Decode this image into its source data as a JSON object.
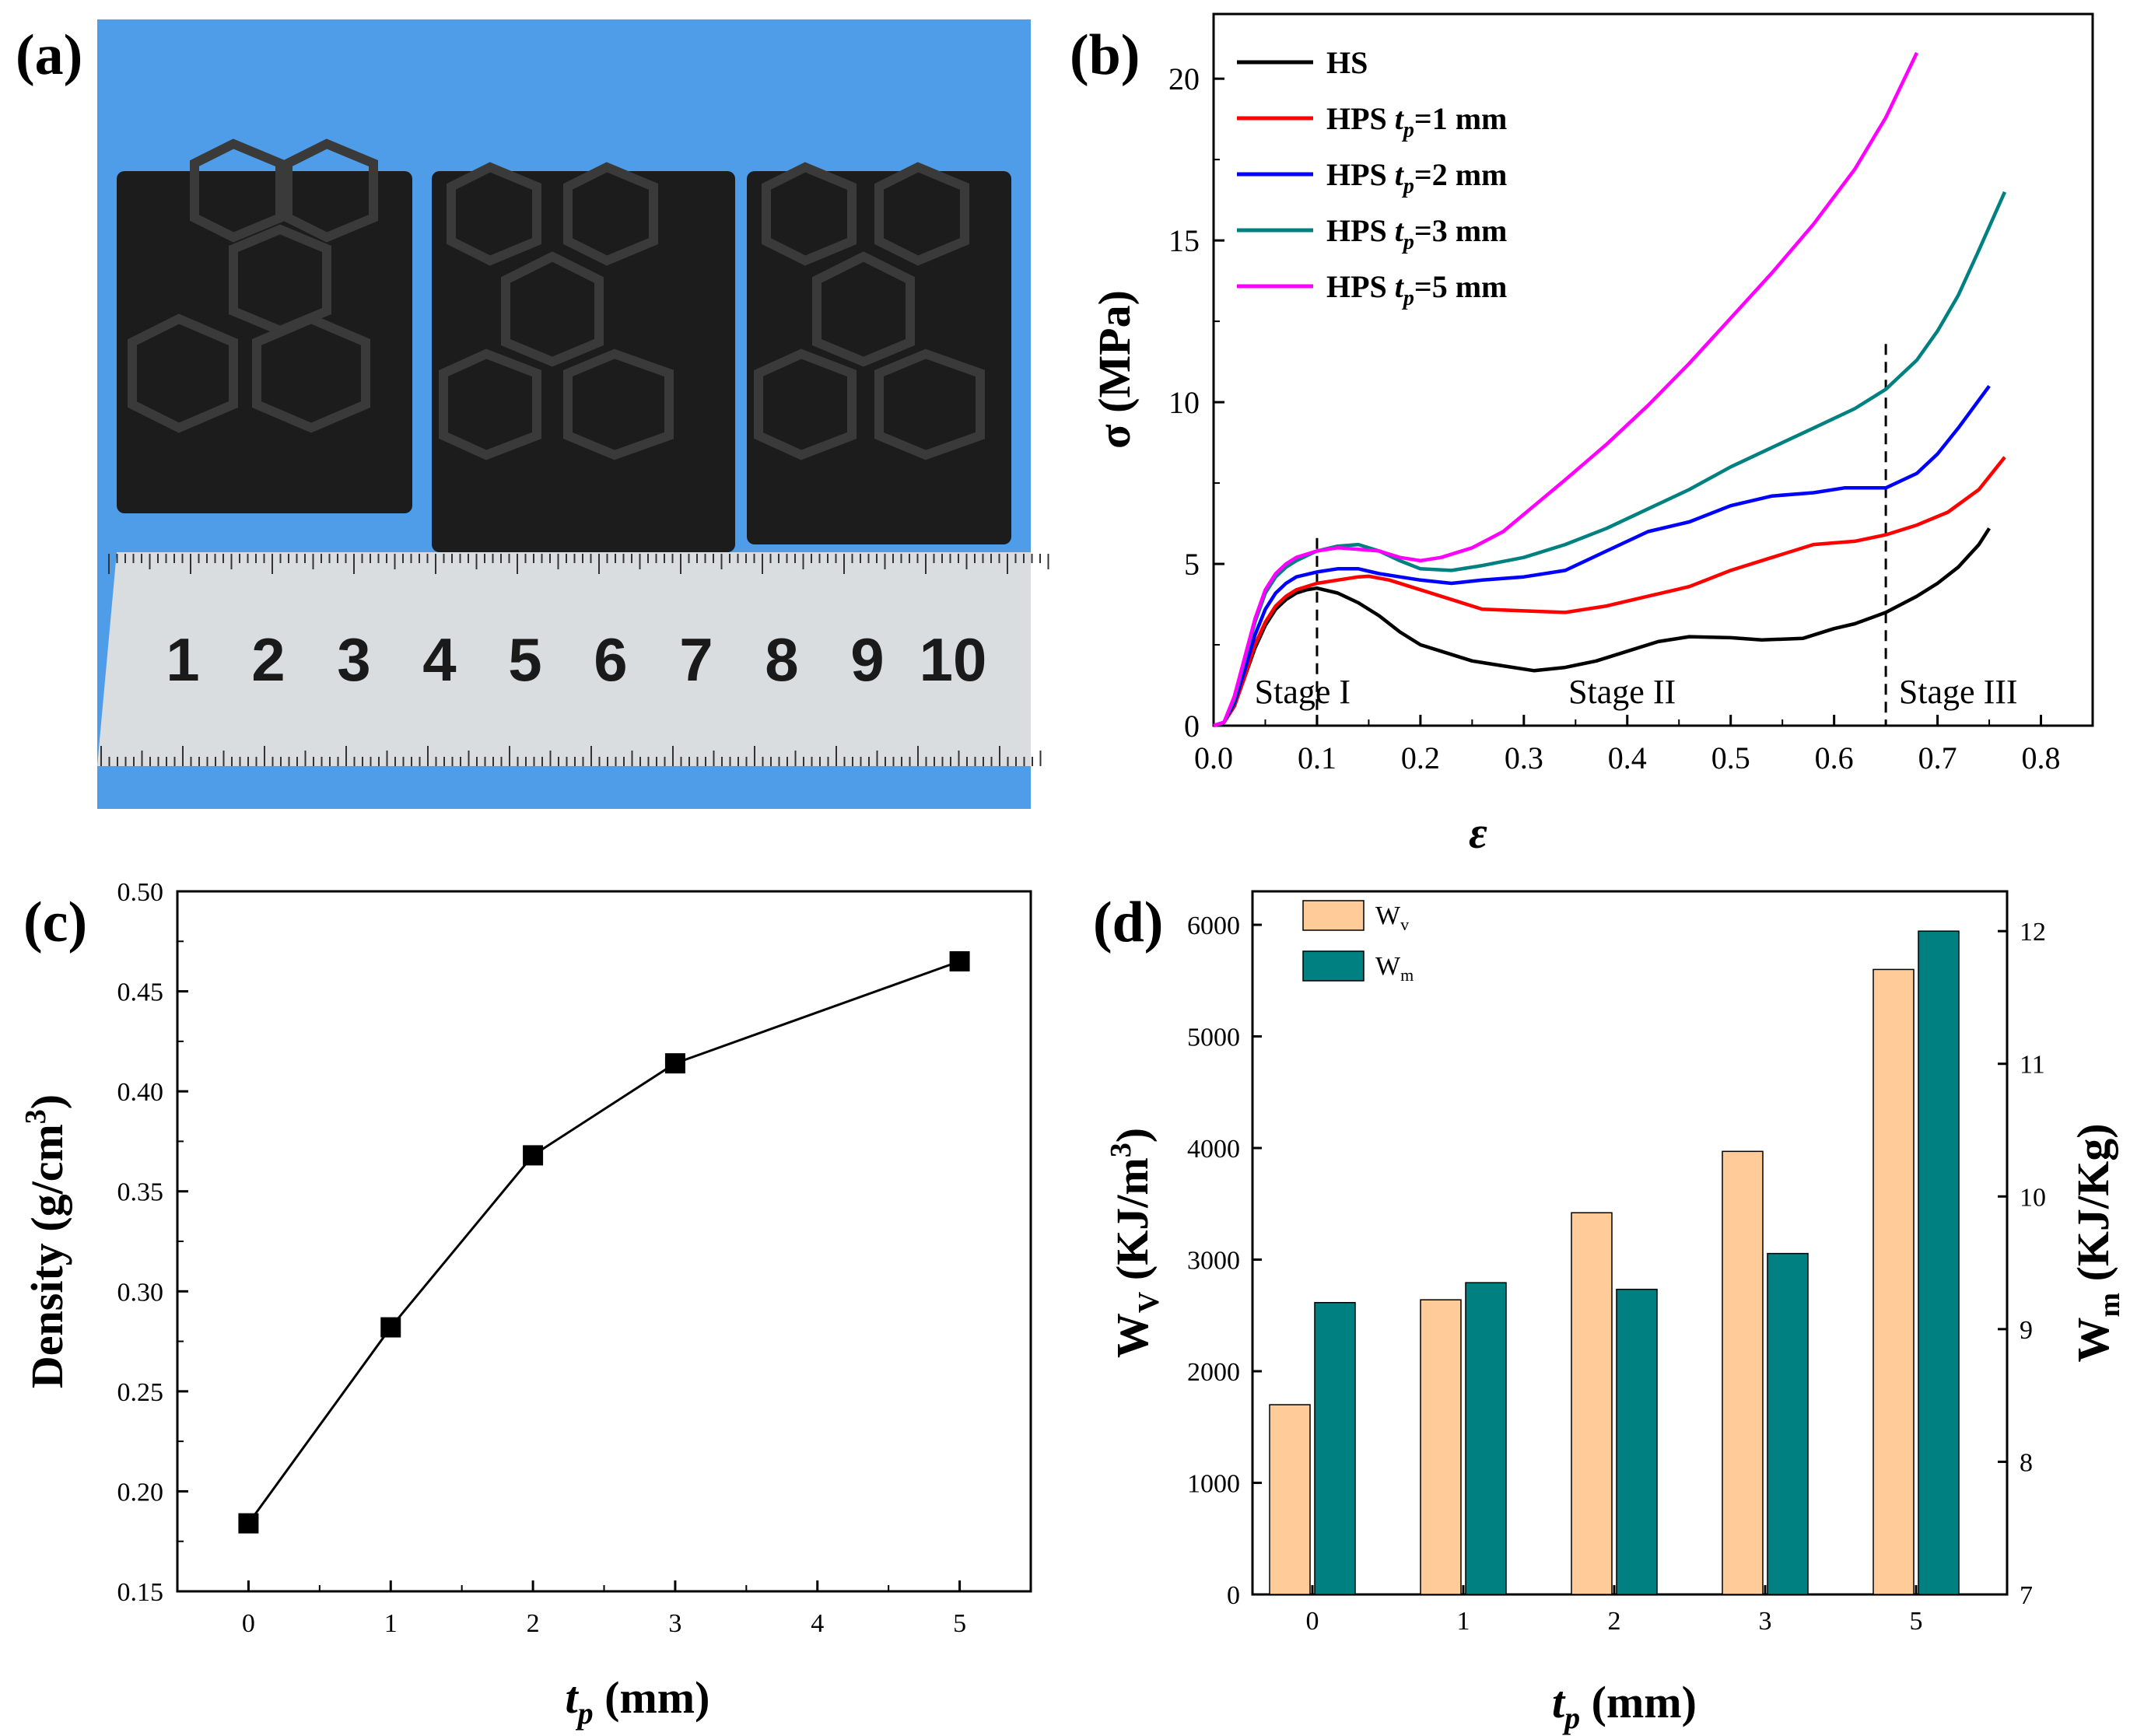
{
  "panels": {
    "a": {
      "label": "(a)"
    },
    "b": {
      "label": "(b)"
    },
    "c": {
      "label": "(c)"
    },
    "d": {
      "label": "(d)"
    }
  },
  "photo": {
    "ruler_numbers": [
      "1",
      "2",
      "3",
      "4",
      "5",
      "6",
      "7",
      "8",
      "9",
      "10"
    ],
    "colors": {
      "background": "#4f9de8",
      "specimen": "#1c1c1c",
      "ruler": "#d9dde0",
      "ruler_ten": "#b0203a"
    }
  },
  "chart_data": [
    {
      "id": "b",
      "type": "line",
      "title": "",
      "xlabel": "ε",
      "ylabel": "σ (MPa)",
      "xlim": [
        0.0,
        0.85
      ],
      "ylim": [
        0,
        22
      ],
      "xticks": [
        0.0,
        0.1,
        0.2,
        0.3,
        0.4,
        0.5,
        0.6,
        0.7,
        0.8
      ],
      "xtick_labels": [
        "0.0",
        "0.1",
        "0.2",
        "0.3",
        "0.4",
        "0.5",
        "0.6",
        "0.7",
        "0.8"
      ],
      "yticks": [
        0,
        5,
        10,
        15,
        20
      ],
      "ytick_labels": [
        "0",
        "5",
        "10",
        "15",
        "20"
      ],
      "legend_position": "top-left",
      "stage_lines": [
        0.1,
        0.65
      ],
      "stage_labels": [
        {
          "text": "Stage I",
          "x": 0.086,
          "y": 0.7
        },
        {
          "text": "Stage II",
          "x": 0.395,
          "y": 0.7
        },
        {
          "text": "Stage III",
          "x": 0.72,
          "y": 0.7
        }
      ],
      "series": [
        {
          "name": "HS",
          "legend_main": "HS",
          "legend_sub": "",
          "legend_tail": "",
          "color": "#000000",
          "x": [
            0,
            0.01,
            0.02,
            0.03,
            0.04,
            0.05,
            0.06,
            0.07,
            0.08,
            0.09,
            0.1,
            0.12,
            0.14,
            0.16,
            0.18,
            0.2,
            0.22,
            0.25,
            0.28,
            0.31,
            0.34,
            0.37,
            0.4,
            0.43,
            0.46,
            0.5,
            0.53,
            0.57,
            0.6,
            0.62,
            0.65,
            0.68,
            0.7,
            0.72,
            0.74,
            0.75
          ],
          "y": [
            0,
            0.1,
            0.6,
            1.5,
            2.4,
            3.1,
            3.6,
            3.9,
            4.1,
            4.2,
            4.25,
            4.1,
            3.8,
            3.4,
            2.9,
            2.5,
            2.3,
            2.0,
            1.85,
            1.7,
            1.8,
            2.0,
            2.3,
            2.6,
            2.75,
            2.72,
            2.65,
            2.7,
            3.0,
            3.15,
            3.5,
            4.0,
            4.4,
            4.9,
            5.6,
            6.1
          ]
        },
        {
          "name": "HPS tp=1 mm",
          "legend_main": "HPS ",
          "legend_sub": "p",
          "legend_tail": "=1 mm",
          "color": "#ff0000",
          "x": [
            0,
            0.01,
            0.02,
            0.03,
            0.04,
            0.05,
            0.06,
            0.07,
            0.08,
            0.1,
            0.12,
            0.14,
            0.15,
            0.17,
            0.2,
            0.23,
            0.26,
            0.3,
            0.34,
            0.38,
            0.42,
            0.46,
            0.5,
            0.54,
            0.58,
            0.62,
            0.65,
            0.68,
            0.71,
            0.74,
            0.765
          ],
          "y": [
            0,
            0.1,
            0.6,
            1.5,
            2.5,
            3.2,
            3.7,
            4.0,
            4.2,
            4.4,
            4.5,
            4.6,
            4.62,
            4.5,
            4.2,
            3.9,
            3.6,
            3.55,
            3.5,
            3.7,
            4.0,
            4.3,
            4.8,
            5.2,
            5.6,
            5.7,
            5.9,
            6.2,
            6.6,
            7.3,
            8.3
          ]
        },
        {
          "name": "HPS tp=2 mm",
          "legend_main": "HPS ",
          "legend_sub": "p",
          "legend_tail": "=2 mm",
          "color": "#0000ff",
          "x": [
            0,
            0.01,
            0.02,
            0.03,
            0.04,
            0.05,
            0.06,
            0.07,
            0.08,
            0.1,
            0.12,
            0.14,
            0.16,
            0.18,
            0.2,
            0.23,
            0.26,
            0.3,
            0.34,
            0.38,
            0.42,
            0.46,
            0.5,
            0.54,
            0.58,
            0.61,
            0.65,
            0.68,
            0.7,
            0.72,
            0.75
          ],
          "y": [
            0,
            0.1,
            0.7,
            1.7,
            2.8,
            3.6,
            4.1,
            4.4,
            4.6,
            4.75,
            4.85,
            4.85,
            4.7,
            4.6,
            4.5,
            4.4,
            4.5,
            4.6,
            4.8,
            5.4,
            6.0,
            6.3,
            6.8,
            7.1,
            7.2,
            7.35,
            7.35,
            7.8,
            8.4,
            9.2,
            10.5
          ]
        },
        {
          "name": "HPS tp=3 mm",
          "legend_main": "HPS ",
          "legend_sub": "p",
          "legend_tail": "=3 mm",
          "color": "#008080",
          "x": [
            0,
            0.01,
            0.02,
            0.03,
            0.04,
            0.05,
            0.06,
            0.07,
            0.08,
            0.1,
            0.12,
            0.14,
            0.16,
            0.18,
            0.2,
            0.23,
            0.26,
            0.3,
            0.34,
            0.38,
            0.42,
            0.46,
            0.5,
            0.54,
            0.58,
            0.62,
            0.65,
            0.68,
            0.7,
            0.72,
            0.74,
            0.765
          ],
          "y": [
            0,
            0.1,
            0.8,
            2.0,
            3.2,
            4.1,
            4.6,
            4.9,
            5.1,
            5.4,
            5.55,
            5.6,
            5.4,
            5.1,
            4.85,
            4.8,
            4.95,
            5.2,
            5.6,
            6.1,
            6.7,
            7.3,
            8.0,
            8.6,
            9.2,
            9.8,
            10.4,
            11.3,
            12.2,
            13.3,
            14.7,
            16.5
          ]
        },
        {
          "name": "HPS tp=5 mm",
          "legend_main": "HPS ",
          "legend_sub": "p",
          "legend_tail": "=5 mm",
          "color": "#ff00ff",
          "x": [
            0,
            0.01,
            0.02,
            0.03,
            0.04,
            0.05,
            0.06,
            0.07,
            0.08,
            0.1,
            0.12,
            0.14,
            0.16,
            0.18,
            0.2,
            0.22,
            0.25,
            0.28,
            0.31,
            0.34,
            0.38,
            0.42,
            0.46,
            0.5,
            0.54,
            0.58,
            0.62,
            0.65,
            0.68
          ],
          "y": [
            0,
            0.1,
            0.9,
            2.1,
            3.3,
            4.2,
            4.7,
            5.0,
            5.2,
            5.4,
            5.5,
            5.45,
            5.4,
            5.2,
            5.1,
            5.2,
            5.5,
            6.0,
            6.8,
            7.6,
            8.7,
            9.9,
            11.2,
            12.6,
            14.0,
            15.5,
            17.2,
            18.8,
            20.8
          ]
        }
      ]
    },
    {
      "id": "c",
      "type": "line",
      "title": "",
      "xlabel": "(mm)",
      "xlabel_main": "t",
      "xlabel_sub": "p",
      "ylabel": "Density (g/cm",
      "ylabel_sup": "3",
      "ylabel_tail": ")",
      "xlim": [
        -0.5,
        5.5
      ],
      "ylim": [
        0.15,
        0.5
      ],
      "xticks": [
        0,
        1,
        2,
        3,
        4,
        5
      ],
      "xtick_labels": [
        "0",
        "1",
        "2",
        "3",
        "4",
        "5"
      ],
      "yticks": [
        0.15,
        0.2,
        0.25,
        0.3,
        0.35,
        0.4,
        0.45,
        0.5
      ],
      "ytick_labels": [
        "0.15",
        "0.20",
        "0.25",
        "0.30",
        "0.35",
        "0.40",
        "0.45",
        "0.50"
      ],
      "series": [
        {
          "name": "Density",
          "color": "#000000",
          "x": [
            0,
            1,
            2,
            3,
            5
          ],
          "y": [
            0.184,
            0.282,
            0.368,
            0.414,
            0.465
          ]
        }
      ]
    },
    {
      "id": "d",
      "type": "bar",
      "title": "",
      "xlabel": "(mm)",
      "xlabel_main": "t",
      "xlabel_sub": "p",
      "categories": [
        "0",
        "1",
        "2",
        "3",
        "5"
      ],
      "ylabel_left": "W",
      "ylabel_left_sub": "V",
      "ylabel_left_tail": " (KJ/m",
      "ylabel_left_sup": "3",
      "ylabel_left_end": ")",
      "ylabel_right": "W",
      "ylabel_right_sub": "m",
      "ylabel_right_tail": " (KJ/Kg)",
      "ylim_left": [
        0,
        6300
      ],
      "ylim_right": [
        7,
        12.3
      ],
      "yticks_left": [
        0,
        1000,
        2000,
        3000,
        4000,
        5000,
        6000
      ],
      "ytick_labels_left": [
        "0",
        "1000",
        "2000",
        "3000",
        "4000",
        "5000",
        "6000"
      ],
      "yticks_right": [
        7,
        8,
        9,
        10,
        11,
        12
      ],
      "ytick_labels_right": [
        "7",
        "8",
        "9",
        "10",
        "11",
        "12"
      ],
      "legend_position": "top-left",
      "series": [
        {
          "name": "Wv",
          "legend_main": "W",
          "legend_sub": "v",
          "axis": "left",
          "color": "#ffcc99",
          "values": [
            1700,
            2640,
            3420,
            3970,
            5600
          ]
        },
        {
          "name": "Wm",
          "legend_main": "W",
          "legend_sub": "m",
          "axis": "right",
          "color": "#008080",
          "values": [
            9.2,
            9.35,
            9.3,
            9.57,
            12.0
          ]
        }
      ]
    }
  ]
}
